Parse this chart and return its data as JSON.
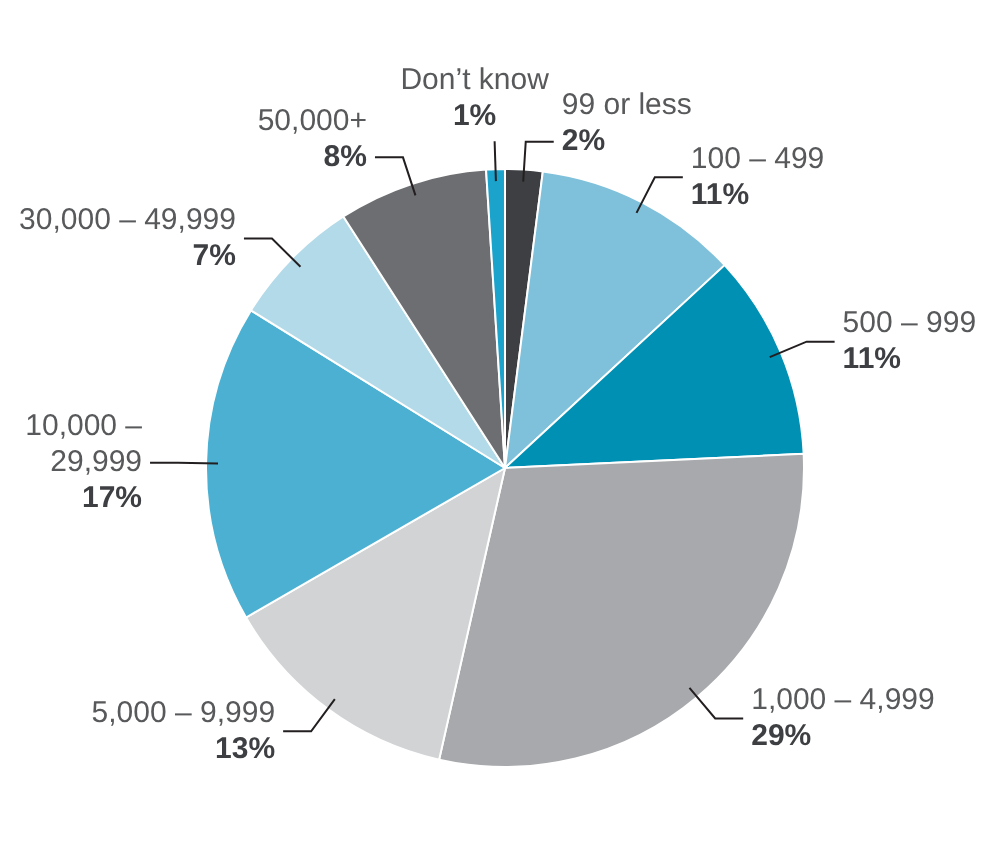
{
  "chart_data": {
    "type": "pie",
    "categories": [
      "99 or less",
      "100 – 499",
      "500 – 999",
      "1,000 – 4,999",
      "5,000 – 9,999",
      "10,000 – 29,999",
      "30,000 – 49,999",
      "50,000+",
      "Don’t know"
    ],
    "values": [
      2,
      11,
      11,
      29,
      13,
      17,
      7,
      8,
      1
    ],
    "colors": [
      "#3d3f42",
      "#7fc0da",
      "#0090b3",
      "#a7a9ac",
      "#d1d3d4",
      "#4bb0d2",
      "#b2dae8",
      "#6d6e71",
      "#1ba3cc"
    ],
    "value_labels": [
      "2%",
      "11%",
      "11%",
      "29%",
      "13%",
      "17%",
      "7%",
      "8%",
      "1%"
    ],
    "legend": false
  }
}
